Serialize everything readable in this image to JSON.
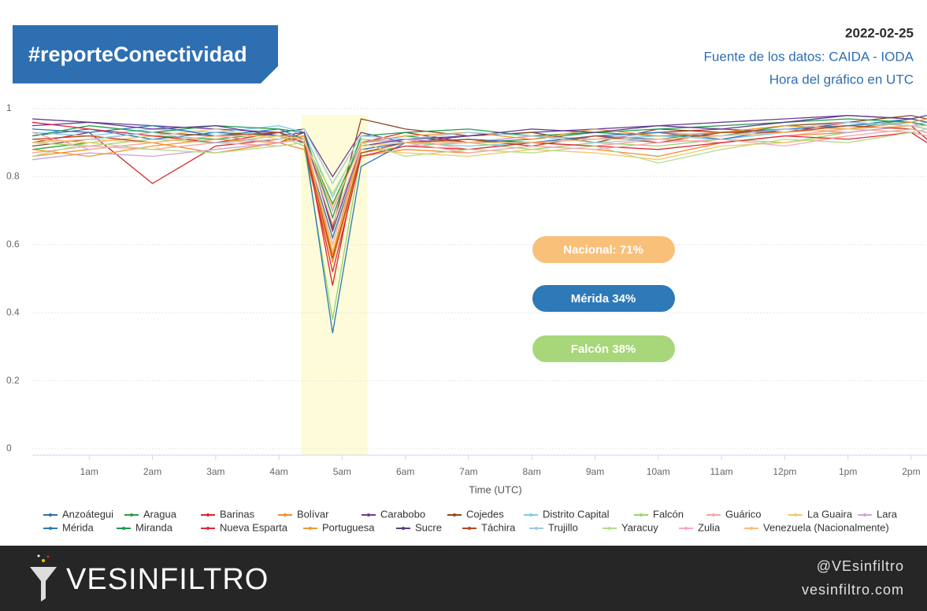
{
  "header": {
    "title": "#reporteConectividad",
    "date": "2022-02-25",
    "source": "Fuente de los datos: CAIDA - IODA",
    "note": "Hora del gráfico en UTC"
  },
  "chart_data": {
    "type": "line",
    "x": [
      0.1,
      1,
      2,
      3,
      4,
      4.4,
      4.85,
      5.3,
      6,
      7,
      8,
      9,
      10,
      11,
      12,
      13,
      14,
      14.25
    ],
    "xlim": [
      0.1,
      14.25
    ],
    "xticks": [
      {
        "value": 1,
        "label": "1am"
      },
      {
        "value": 2,
        "label": "2am"
      },
      {
        "value": 3,
        "label": "3am"
      },
      {
        "value": 4,
        "label": "4am"
      },
      {
        "value": 5,
        "label": "5am"
      },
      {
        "value": 6,
        "label": "6am"
      },
      {
        "value": 7,
        "label": "7am"
      },
      {
        "value": 8,
        "label": "8am"
      },
      {
        "value": 9,
        "label": "9am"
      },
      {
        "value": 10,
        "label": "10am"
      },
      {
        "value": 11,
        "label": "11am"
      },
      {
        "value": 12,
        "label": "12pm"
      },
      {
        "value": 13,
        "label": "1pm"
      },
      {
        "value": 14,
        "label": "2pm"
      }
    ],
    "xlabel": "Time (UTC)",
    "ylim": [
      0,
      1
    ],
    "yticks": [
      0,
      0.2,
      0.4,
      0.6,
      0.8,
      1
    ],
    "grid": true,
    "highlight": [
      4.35,
      5.4
    ],
    "legend": "bottom",
    "series": [
      {
        "name": "Anzoátegui",
        "color": "#2f6fb0",
        "values": [
          0.92,
          0.94,
          0.91,
          0.93,
          0.92,
          0.9,
          0.62,
          0.88,
          0.9,
          0.91,
          0.9,
          0.92,
          0.91,
          0.93,
          0.94,
          0.95,
          0.96,
          0.95
        ]
      },
      {
        "name": "Aragua",
        "color": "#2e9e3e",
        "values": [
          0.88,
          0.9,
          0.92,
          0.91,
          0.93,
          0.91,
          0.72,
          0.9,
          0.92,
          0.9,
          0.91,
          0.93,
          0.92,
          0.92,
          0.95,
          0.94,
          0.97,
          0.96
        ]
      },
      {
        "name": "Barinas",
        "color": "#d62728",
        "values": [
          0.9,
          0.93,
          0.78,
          0.89,
          0.91,
          0.92,
          0.48,
          0.9,
          0.93,
          0.9,
          0.92,
          0.91,
          0.93,
          0.94,
          0.93,
          0.96,
          0.95,
          0.91
        ]
      },
      {
        "name": "Bolívar",
        "color": "#f28c28",
        "values": [
          0.86,
          0.88,
          0.9,
          0.87,
          0.9,
          0.88,
          0.55,
          0.86,
          0.88,
          0.87,
          0.89,
          0.88,
          0.86,
          0.9,
          0.92,
          0.93,
          0.95,
          0.94
        ]
      },
      {
        "name": "Carabobo",
        "color": "#6a3d9a",
        "values": [
          0.95,
          0.96,
          0.95,
          0.94,
          0.93,
          0.94,
          0.8,
          0.93,
          0.9,
          0.92,
          0.93,
          0.94,
          0.95,
          0.96,
          0.97,
          0.98,
          0.97,
          0.96
        ]
      },
      {
        "name": "Cojedes",
        "color": "#8c4a1c",
        "values": [
          0.89,
          0.91,
          0.93,
          0.92,
          0.9,
          0.93,
          0.65,
          0.97,
          0.94,
          0.92,
          0.93,
          0.9,
          0.94,
          0.93,
          0.95,
          0.96,
          0.98,
          0.97
        ]
      },
      {
        "name": "Distrito Capital",
        "color": "#7fc8e8",
        "values": [
          0.93,
          0.92,
          0.94,
          0.93,
          0.95,
          0.93,
          0.74,
          0.91,
          0.9,
          0.89,
          0.9,
          0.91,
          0.92,
          0.91,
          0.93,
          0.95,
          0.96,
          0.95
        ]
      },
      {
        "name": "Falcón",
        "color": "#9bd36b",
        "values": [
          0.9,
          0.89,
          0.91,
          0.9,
          0.92,
          0.89,
          0.38,
          0.87,
          0.89,
          0.9,
          0.88,
          0.9,
          0.89,
          0.91,
          0.9,
          0.93,
          0.95,
          0.94
        ]
      },
      {
        "name": "Guárico",
        "color": "#f4a6a0",
        "values": [
          0.87,
          0.89,
          0.88,
          0.9,
          0.89,
          0.9,
          0.6,
          0.89,
          0.91,
          0.88,
          0.9,
          0.89,
          0.91,
          0.9,
          0.92,
          0.94,
          0.93,
          0.92
        ]
      },
      {
        "name": "La Guaira",
        "color": "#f7c66b",
        "values": [
          0.91,
          0.9,
          0.92,
          0.94,
          0.91,
          0.92,
          0.58,
          0.88,
          0.87,
          0.86,
          0.88,
          0.87,
          0.85,
          0.89,
          0.9,
          0.92,
          0.94,
          0.93
        ]
      },
      {
        "name": "Lara",
        "color": "#c9a6d8",
        "values": [
          0.85,
          0.87,
          0.86,
          0.88,
          0.9,
          0.91,
          0.7,
          0.9,
          0.91,
          0.9,
          0.92,
          0.91,
          0.93,
          0.92,
          0.94,
          0.93,
          0.95,
          0.96
        ]
      },
      {
        "name": "Mérida",
        "color": "#2a78b8",
        "values": [
          0.94,
          0.93,
          0.95,
          0.92,
          0.94,
          0.91,
          0.34,
          0.83,
          0.9,
          0.91,
          0.9,
          0.92,
          0.93,
          0.91,
          0.94,
          0.95,
          0.97,
          0.96
        ]
      },
      {
        "name": "Miranda",
        "color": "#1f9a4a",
        "values": [
          0.92,
          0.95,
          0.93,
          0.95,
          0.94,
          0.93,
          0.68,
          0.92,
          0.93,
          0.94,
          0.92,
          0.93,
          0.94,
          0.95,
          0.96,
          0.97,
          0.96,
          0.95
        ]
      },
      {
        "name": "Nueva Esparta",
        "color": "#e0263a",
        "values": [
          0.96,
          0.94,
          0.92,
          0.9,
          0.93,
          0.9,
          0.52,
          0.86,
          0.89,
          0.88,
          0.9,
          0.89,
          0.88,
          0.9,
          0.92,
          0.91,
          0.93,
          0.9
        ]
      },
      {
        "name": "Portuguesa",
        "color": "#f39a2f",
        "values": [
          0.88,
          0.86,
          0.89,
          0.91,
          0.9,
          0.92,
          0.57,
          0.9,
          0.92,
          0.93,
          0.91,
          0.94,
          0.92,
          0.93,
          0.95,
          0.94,
          0.96,
          0.97
        ]
      },
      {
        "name": "Sucre",
        "color": "#5b3a8c",
        "values": [
          0.97,
          0.96,
          0.94,
          0.95,
          0.92,
          0.93,
          0.64,
          0.89,
          0.91,
          0.92,
          0.94,
          0.93,
          0.95,
          0.94,
          0.96,
          0.98,
          0.97,
          0.98
        ]
      },
      {
        "name": "Táchira",
        "color": "#b8471e",
        "values": [
          0.91,
          0.92,
          0.9,
          0.92,
          0.93,
          0.9,
          0.56,
          0.87,
          0.9,
          0.91,
          0.89,
          0.92,
          0.9,
          0.93,
          0.93,
          0.95,
          0.94,
          0.93
        ]
      },
      {
        "name": "Trujillo",
        "color": "#9ecae1",
        "values": [
          0.9,
          0.91,
          0.93,
          0.9,
          0.91,
          0.94,
          0.78,
          0.92,
          0.91,
          0.93,
          0.92,
          0.9,
          0.91,
          0.92,
          0.94,
          0.96,
          0.95,
          0.94
        ]
      },
      {
        "name": "Yaracuy",
        "color": "#b5dd8a",
        "values": [
          0.86,
          0.9,
          0.88,
          0.87,
          0.89,
          0.9,
          0.75,
          0.9,
          0.86,
          0.88,
          0.87,
          0.89,
          0.84,
          0.88,
          0.91,
          0.9,
          0.93,
          0.94
        ]
      },
      {
        "name": "Zulia",
        "color": "#f7a8b8",
        "values": [
          0.93,
          0.88,
          0.9,
          0.92,
          0.9,
          0.91,
          0.66,
          0.89,
          0.9,
          0.87,
          0.89,
          0.88,
          0.9,
          0.91,
          0.89,
          0.92,
          0.94,
          0.93
        ]
      },
      {
        "name": "Venezuela (Nacionalmente)",
        "color": "#fbbf77",
        "values": [
          0.9,
          0.91,
          0.9,
          0.92,
          0.92,
          0.91,
          0.71,
          0.89,
          0.9,
          0.9,
          0.9,
          0.91,
          0.91,
          0.92,
          0.93,
          0.94,
          0.95,
          0.95
        ]
      }
    ],
    "annotations": [
      {
        "text": "Nacional: 71%",
        "color": "#f9c07a"
      },
      {
        "text": "Mérida 34%",
        "color": "#2e7ab8"
      },
      {
        "text": "Falcón 38%",
        "color": "#a8d67a"
      }
    ]
  },
  "footer": {
    "logo": "VESINFILTRO",
    "handle": "@VEsinfiltro",
    "site": "vesinfiltro.com"
  }
}
